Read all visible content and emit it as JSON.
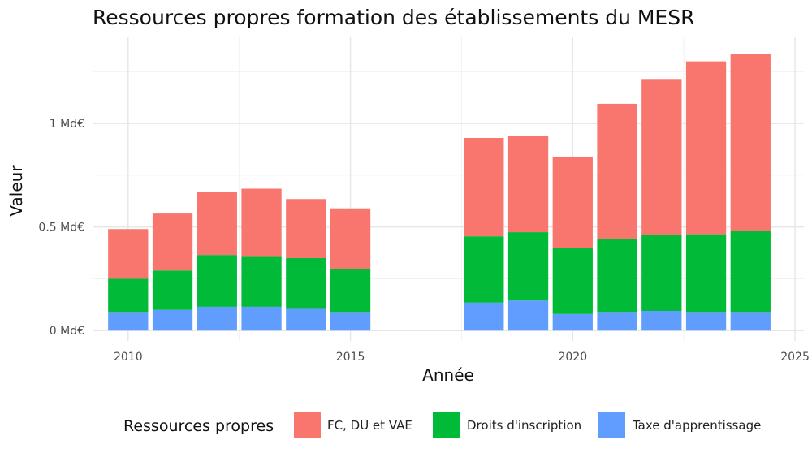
{
  "chart_data": {
    "type": "bar",
    "stacked": true,
    "title": "Ressources propres formation des établissements du MESR",
    "xlabel": "Année",
    "ylabel": "Valeur",
    "x_ticks": [
      2010,
      2015,
      2020,
      2025
    ],
    "y_ticks": [
      {
        "value": 0,
        "label": "0 Md€"
      },
      {
        "value": 0.5,
        "label": "0.5 Md€"
      },
      {
        "value": 1,
        "label": "1 Md€"
      }
    ],
    "xlim": [
      2009.2,
      2025.2
    ],
    "ylim": [
      -0.05,
      1.42
    ],
    "categories": [
      2010,
      2011,
      2012,
      2013,
      2014,
      2015,
      2018,
      2019,
      2020,
      2021,
      2022,
      2023,
      2024
    ],
    "series": [
      {
        "name": "Taxe d'apprentissage",
        "color": "#619cff",
        "values": [
          0.09,
          0.1,
          0.115,
          0.115,
          0.105,
          0.09,
          0.135,
          0.145,
          0.08,
          0.09,
          0.095,
          0.09,
          0.09
        ]
      },
      {
        "name": "Droits d'inscription",
        "color": "#00ba38",
        "values": [
          0.16,
          0.19,
          0.25,
          0.245,
          0.245,
          0.205,
          0.32,
          0.33,
          0.32,
          0.35,
          0.365,
          0.375,
          0.39
        ]
      },
      {
        "name": "FC, DU et VAE",
        "color": "#f8766d",
        "values": [
          0.24,
          0.275,
          0.305,
          0.325,
          0.285,
          0.295,
          0.475,
          0.465,
          0.44,
          0.655,
          0.755,
          0.835,
          0.855
        ]
      }
    ],
    "legend": {
      "title": "Ressources propres",
      "position": "bottom",
      "order": [
        "FC, DU et VAE",
        "Droits d'inscription",
        "Taxe d'apprentissage"
      ]
    },
    "grid": true
  }
}
